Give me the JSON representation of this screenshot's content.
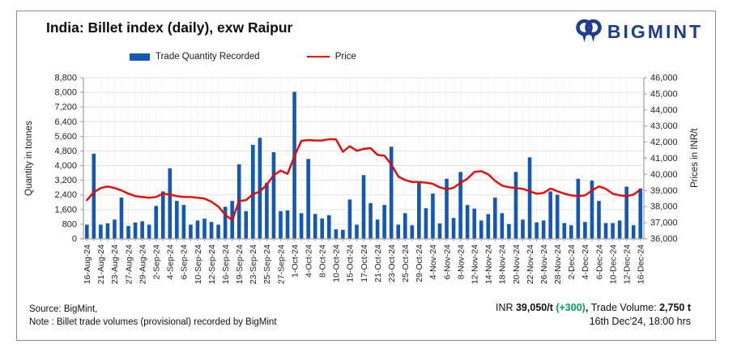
{
  "header": {
    "title": "India: Billet index (daily), exw Raipur",
    "brand": "BIGMINT"
  },
  "footer": {
    "source": "Source: BigMint,",
    "note": "Note : Billet trade volumes (provisional) recorded by BigMint",
    "price_prefix": "INR ",
    "price_value": "39,050/t ",
    "price_change": "(+300)",
    "separator": ", ",
    "volume_label": "Trade Volume: ",
    "volume_value": "2,750 t",
    "timestamp": "16th Dec'24, 18:00 hrs"
  },
  "colors": {
    "bar": "#1358b4",
    "line": "#f40000",
    "positive_change": "#00a550",
    "brand_navy": "#1e3d8f",
    "grid_h": "#e3e3e3",
    "grid_v": "#f2f2f2",
    "axis": "#9c9c9c",
    "tick_text": "#1f1f1f"
  },
  "chart_data": {
    "type": "bar",
    "combo": "bar + line, dual y-axis",
    "title": "India: Billet index (daily), exw Raipur",
    "xlabel": "",
    "ylabel": "Quantity in tonnes",
    "ylabel_right": "Prices in INR/t",
    "grid": "horizontal light gray on, faint vertical",
    "legend_position": "top",
    "label_every": 2,
    "y_left": {
      "min": 0,
      "max": 8800,
      "step": 800,
      "tick_labels": [
        "0",
        "800",
        "1,600",
        "2,400",
        "3,200",
        "4,000",
        "4,800",
        "5,600",
        "6,400",
        "7,200",
        "8,000",
        "8,800"
      ]
    },
    "y_right": {
      "min": 36000,
      "max": 46000,
      "step": 1000,
      "tick_labels": [
        "36,000",
        "37,000",
        "38,000",
        "39,000",
        "40,000",
        "41,000",
        "42,000",
        "43,000",
        "44,000",
        "45,000",
        "46,000"
      ]
    },
    "x_tick_labels": [
      "16-Aug-24",
      "21-Aug-24",
      "23-Aug-24",
      "27-Aug-24",
      "29-Aug-24",
      "2-Sep-24",
      "4-Sep-24",
      "6-Sep-24",
      "10-Sep-24",
      "12-Sep-24",
      "16-Sep-24",
      "19-Sep-24",
      "23-Sep-24",
      "25-Sep-24",
      "27-Sep-24",
      "1-Oct-24",
      "4-Oct-24",
      "8-Oct-24",
      "10-Oct-24",
      "15-Oct-24",
      "17-Oct-24",
      "21-Oct-24",
      "23-Oct-24",
      "25-Oct-24",
      "29-Oct-24",
      "4-Nov-24",
      "6-Nov-24",
      "8-Nov-24",
      "12-Nov-24",
      "14-Nov-24",
      "18-Nov-24",
      "20-Nov-24",
      "22-Nov-24",
      "26-Nov-24",
      "28-Nov-24",
      "2-Dec-24",
      "4-Dec-24",
      "6-Dec-24",
      "10-Dec-24",
      "12-Dec-24",
      "16-Dec-24"
    ],
    "series": [
      {
        "name": "Trade Quantity Recorded",
        "type": "bar",
        "axis": "left",
        "values": [
          770,
          4650,
          770,
          850,
          1050,
          2250,
          700,
          890,
          960,
          770,
          1800,
          2590,
          3850,
          2070,
          1850,
          770,
          1000,
          1100,
          920,
          770,
          1750,
          2070,
          4070,
          1510,
          5130,
          5520,
          3060,
          4730,
          1510,
          1550,
          8030,
          1400,
          4360,
          1360,
          1110,
          1290,
          520,
          490,
          2150,
          770,
          3480,
          1950,
          1050,
          1850,
          5030,
          770,
          1400,
          740,
          3100,
          1670,
          2470,
          840,
          3280,
          1140,
          3650,
          1850,
          1650,
          1000,
          1350,
          2250,
          1400,
          800,
          3650,
          1050,
          4450,
          900,
          1000,
          2590,
          2410,
          860,
          740,
          3280,
          920,
          3180,
          2070,
          860,
          860,
          1000,
          2850,
          740,
          2750
        ]
      },
      {
        "name": "Price",
        "type": "line",
        "axis": "right",
        "values": [
          38400,
          38900,
          39150,
          39250,
          39150,
          39000,
          38800,
          38650,
          38600,
          38550,
          38600,
          38800,
          38750,
          38650,
          38600,
          38600,
          38550,
          38500,
          38300,
          38000,
          37500,
          37150,
          38350,
          38400,
          38770,
          38940,
          39360,
          39950,
          40230,
          40030,
          41130,
          42080,
          42130,
          42100,
          42100,
          42180,
          42170,
          41400,
          41750,
          41460,
          41580,
          41630,
          41210,
          41160,
          40620,
          39870,
          39650,
          39530,
          39530,
          39480,
          39410,
          39190,
          39080,
          39160,
          39480,
          39730,
          40150,
          40200,
          40000,
          39600,
          39300,
          39200,
          39150,
          39100,
          38950,
          38800,
          38850,
          39120,
          38950,
          38800,
          38700,
          38650,
          38700,
          39000,
          39250,
          39100,
          38800,
          38700,
          38650,
          38750,
          39050
        ]
      }
    ]
  }
}
